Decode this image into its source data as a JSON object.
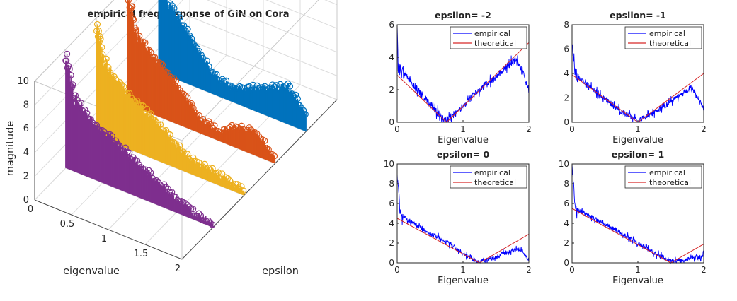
{
  "chart_data": [
    {
      "type": "stem3d",
      "title": "empirical freq response of GIN on Cora",
      "xlabel": "eigenvalue",
      "ylabel": "epsilon",
      "zlabel": "magnitude",
      "xticks": [
        "0",
        "0.5",
        "1",
        "1.5",
        "2"
      ],
      "zticks": [
        "0",
        "2",
        "4",
        "6",
        "8",
        "10"
      ],
      "xlim": [
        0,
        2
      ],
      "zlim": [
        0,
        10
      ],
      "grid": true,
      "series": [
        {
          "color": "#7E2F8E",
          "x": [
            0,
            0.1,
            0.3,
            0.5,
            0.75,
            1.0,
            1.25,
            1.5,
            1.75,
            2.0
          ],
          "y": [
            9.4,
            6.5,
            5.2,
            4.4,
            3.7,
            2.8,
            2.0,
            1.2,
            0.6,
            0.4
          ]
        },
        {
          "color": "#EDB120",
          "x": [
            0,
            0.1,
            0.3,
            0.5,
            0.75,
            1.0,
            1.25,
            1.5,
            1.75,
            2.0
          ],
          "y": [
            9.2,
            6.5,
            5.2,
            4.3,
            3.5,
            2.4,
            1.3,
            1.0,
            0.8,
            0.4
          ]
        },
        {
          "color": "#D95319",
          "x": [
            0,
            0.1,
            0.3,
            0.5,
            0.75,
            1.0,
            1.25,
            1.5,
            1.75,
            2.0
          ],
          "y": [
            9.6,
            6.4,
            5.2,
            4.2,
            2.8,
            1.2,
            0.9,
            1.9,
            2.0,
            0.4
          ]
        },
        {
          "color": "#0072BD",
          "x": [
            0,
            0.1,
            0.3,
            0.5,
            0.75,
            1.0,
            1.25,
            1.5,
            1.75,
            2.0
          ],
          "y": [
            9.8,
            6.5,
            5.0,
            3.6,
            1.6,
            1.2,
            1.8,
            2.5,
            3.2,
            1.6
          ]
        }
      ]
    },
    {
      "type": "line",
      "title": "epsilon= -2",
      "xlabel": "Eigenvalue",
      "xlim": [
        0,
        2
      ],
      "ylim": [
        0,
        6
      ],
      "xticks": [
        "0",
        "1",
        "2"
      ],
      "yticks": [
        "0",
        "2",
        "4",
        "6"
      ],
      "legend": "top-right",
      "series": [
        {
          "name": "empirical",
          "color": "#0000FF",
          "x": [
            0,
            0.02,
            0.1,
            0.25,
            0.5,
            0.7,
            0.75,
            1.0,
            1.25,
            1.5,
            1.7,
            1.8,
            1.9,
            2.0
          ],
          "y": [
            6.0,
            3.2,
            3.0,
            2.3,
            1.1,
            0.2,
            0.1,
            1.0,
            2.0,
            2.8,
            3.6,
            3.8,
            3.2,
            2.0
          ]
        },
        {
          "name": "theoretical",
          "color": "#D62728",
          "x": [
            0,
            0.75,
            2.0
          ],
          "y": [
            2.9,
            0,
            4.9
          ]
        }
      ]
    },
    {
      "type": "line",
      "title": "epsilon= -1",
      "xlabel": "Eigenvalue",
      "xlim": [
        0,
        2
      ],
      "ylim": [
        0,
        8
      ],
      "xticks": [
        "0",
        "1",
        "2"
      ],
      "yticks": [
        "0",
        "2",
        "4",
        "6",
        "8"
      ],
      "legend": "top-right",
      "series": [
        {
          "name": "empirical",
          "color": "#0000FF",
          "x": [
            0,
            0.05,
            0.1,
            0.25,
            0.5,
            0.75,
            1.0,
            1.25,
            1.5,
            1.75,
            1.8,
            1.9,
            2.0
          ],
          "y": [
            6.3,
            4.0,
            3.6,
            3.0,
            1.9,
            0.9,
            0.1,
            0.8,
            1.7,
            2.6,
            2.9,
            2.1,
            1.0
          ]
        },
        {
          "name": "theoretical",
          "color": "#D62728",
          "x": [
            0,
            1.0,
            2.0
          ],
          "y": [
            3.9,
            0,
            4.0
          ]
        }
      ]
    },
    {
      "type": "line",
      "title": "epsilon= 0",
      "xlabel": "Eigenvalue",
      "xlim": [
        0,
        2
      ],
      "ylim": [
        0,
        10
      ],
      "xticks": [
        "0",
        "1",
        "2"
      ],
      "yticks": [
        "0",
        "2",
        "4",
        "6",
        "8",
        "10"
      ],
      "legend": "top-right",
      "series": [
        {
          "name": "empirical",
          "color": "#0000FF",
          "x": [
            0,
            0.05,
            0.1,
            0.25,
            0.5,
            0.75,
            1.0,
            1.2,
            1.25,
            1.5,
            1.75,
            1.9,
            2.0
          ],
          "y": [
            9.0,
            5.0,
            4.6,
            4.0,
            3.0,
            2.1,
            1.0,
            0.2,
            0.1,
            0.6,
            1.3,
            1.4,
            0.1
          ]
        },
        {
          "name": "theoretical",
          "color": "#D62728",
          "x": [
            0,
            1.25,
            2.0
          ],
          "y": [
            4.5,
            0,
            2.9
          ]
        }
      ]
    },
    {
      "type": "line",
      "title": "epsilon= 1",
      "xlabel": "Eigenvalue",
      "xlim": [
        0,
        2
      ],
      "ylim": [
        0,
        10
      ],
      "xticks": [
        "0",
        "1",
        "2"
      ],
      "yticks": [
        "0",
        "2",
        "4",
        "6",
        "8",
        "10"
      ],
      "legend": "top-right",
      "series": [
        {
          "name": "empirical",
          "color": "#0000FF",
          "x": [
            0,
            0.05,
            0.1,
            0.25,
            0.5,
            0.75,
            1.0,
            1.25,
            1.5,
            1.7,
            1.8,
            1.9,
            1.95,
            2.0
          ],
          "y": [
            10.0,
            5.5,
            5.3,
            4.8,
            3.9,
            3.0,
            2.0,
            1.0,
            0.2,
            0.2,
            0.5,
            0.6,
            0.3,
            1.1
          ]
        },
        {
          "name": "theoretical",
          "color": "#D62728",
          "x": [
            0,
            1.5,
            2.0
          ],
          "y": [
            5.5,
            0,
            1.9
          ]
        }
      ]
    }
  ]
}
